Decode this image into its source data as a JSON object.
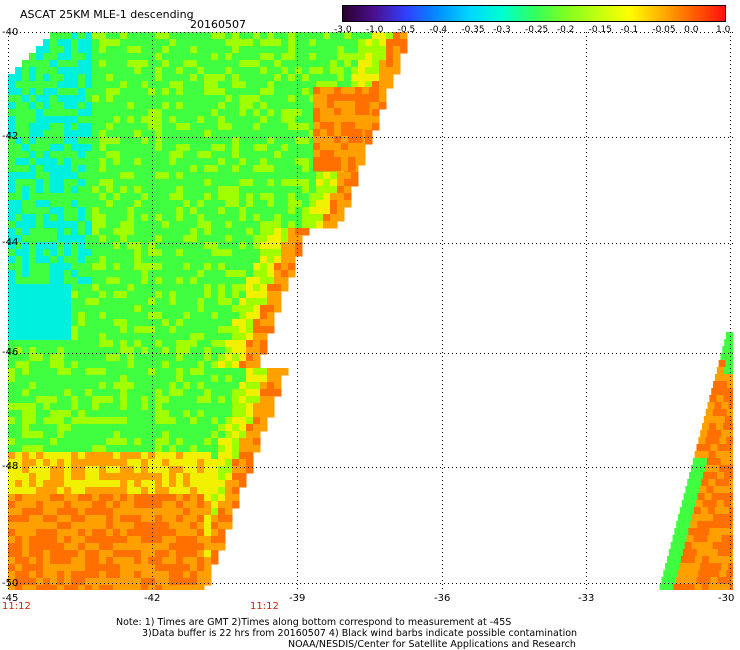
{
  "header": {
    "title": "ASCAT 25KM MLE-1 descending",
    "date": "20160507"
  },
  "colorbar": {
    "labels": [
      "-3.0",
      "-1.0",
      "-0.5",
      "-0.4",
      "-0.35",
      "-0.3",
      "-0.25",
      "-0.2",
      "-0.15",
      "-0.1",
      "-0.05",
      "0.0",
      "1.0"
    ],
    "colors": [
      "#2a0030",
      "#4a1090",
      "#3040ff",
      "#0090ff",
      "#00d8ff",
      "#00ffd0",
      "#30ff60",
      "#80ff20",
      "#c0ff10",
      "#ffff00",
      "#ffb000",
      "#ff6000",
      "#ff1010"
    ]
  },
  "axes": {
    "y_labels": [
      "-40",
      "-42",
      "-44",
      "-46",
      "-48",
      "-50"
    ],
    "x_labels": [
      "-45",
      "-42",
      "-39",
      "-36",
      "-33",
      "-30"
    ]
  },
  "time_labels": [
    "11:12",
    "11:12"
  ],
  "notes": {
    "line1": "Note: 1) Times are GMT 2)Times along bottom correspond to measurement at -45S",
    "line2": "3)Data buffer is 22 hrs from 20160507 4) Black wind barbs indicate possible contamination",
    "line3": "NOAA/NESDIS/Center for Satellite Applications and Research"
  },
  "map_colors": {
    "cyan": "#00f0e0",
    "green": "#40ff40",
    "lime": "#a0ff00",
    "yellow": "#f0f000",
    "orange": "#ffa000",
    "dark_orange": "#ff7000"
  }
}
